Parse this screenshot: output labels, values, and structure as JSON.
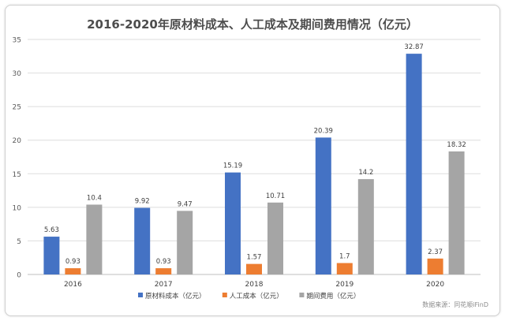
{
  "chart_data": {
    "type": "bar",
    "title": "2016-2020年原材料成本、人工成本及期间费用情况（亿元）",
    "xlabel": "",
    "ylabel": "",
    "categories": [
      "2016",
      "2017",
      "2018",
      "2019",
      "2020"
    ],
    "ylim": [
      0,
      35
    ],
    "yticks": [
      0,
      5,
      10,
      15,
      20,
      25,
      30,
      35
    ],
    "grid": true,
    "legend_position": "bottom",
    "data_labels": true,
    "series": [
      {
        "name": "原材料成本（亿元）",
        "color": "#4472c4",
        "values": [
          5.63,
          9.92,
          15.19,
          20.39,
          32.87
        ],
        "labels": [
          "5.63",
          "9.92",
          "15.19",
          "20.39",
          "32.87"
        ]
      },
      {
        "name": "人工成本（亿元）",
        "color": "#ed7d31",
        "values": [
          0.93,
          0.93,
          1.57,
          1.7,
          2.37
        ],
        "labels": [
          "0.93",
          "0.93",
          "1.57",
          "1.7",
          "2.37"
        ]
      },
      {
        "name": "期间费用（亿元）",
        "color": "#a5a5a5",
        "values": [
          10.4,
          9.47,
          10.71,
          14.2,
          18.32
        ],
        "labels": [
          "10.4",
          "9.47",
          "10.71",
          "14.2",
          "18.32"
        ]
      }
    ]
  },
  "source_note": "数据来源：同花顺iFinD"
}
